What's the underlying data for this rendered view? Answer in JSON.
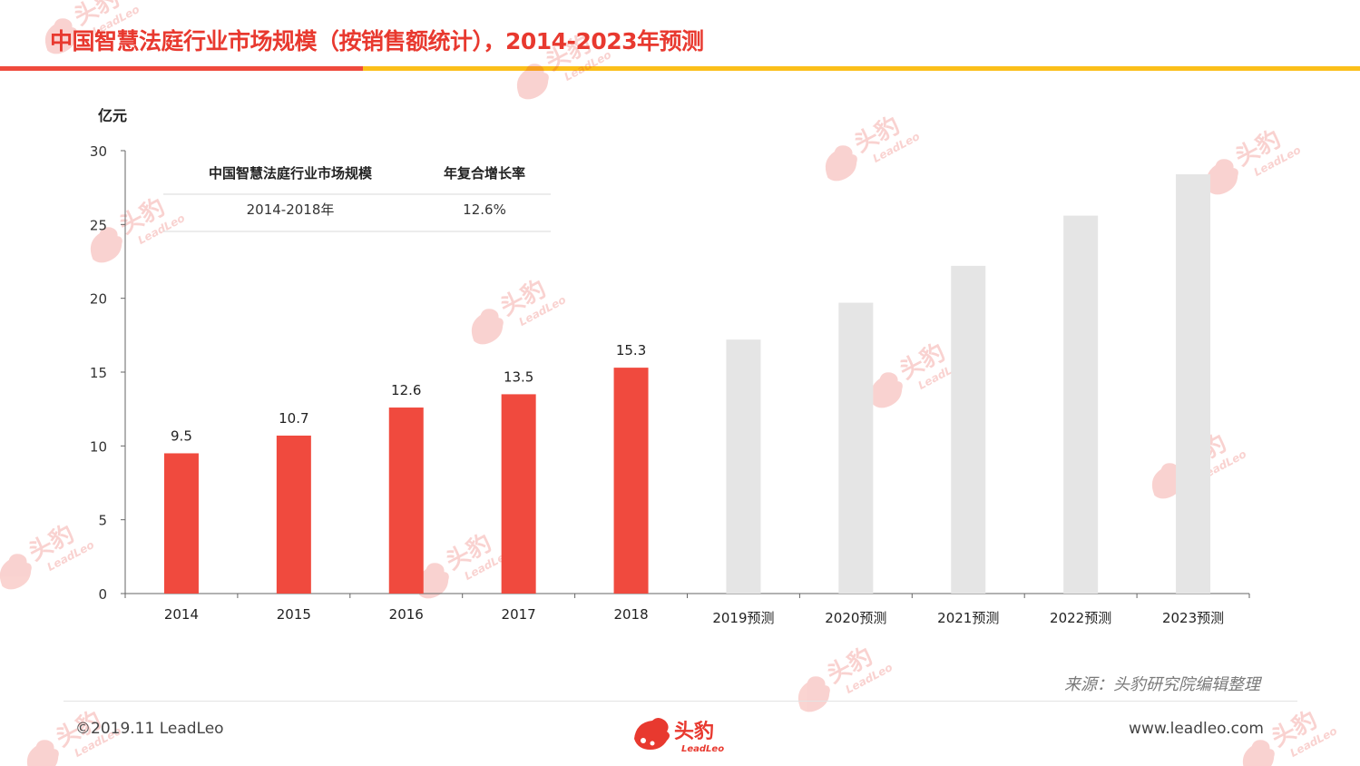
{
  "header": {
    "title": "中国智慧法庭行业市场规模（按销售额统计），2014-2023年预测"
  },
  "colors": {
    "actual_bar": "#f04a3e",
    "forecast_bar": "#e5e5e5",
    "title": "#e8392f",
    "accent_yellow": "#fbbf1a"
  },
  "chart_data": {
    "type": "bar",
    "ylabel": "亿元",
    "ylim": [
      0,
      30
    ],
    "yticks": [
      0,
      5,
      10,
      15,
      20,
      25,
      30
    ],
    "categories": [
      "2014",
      "2015",
      "2016",
      "2017",
      "2018",
      "2019预测",
      "2020预测",
      "2021预测",
      "2022预测",
      "2023预测"
    ],
    "values": [
      9.5,
      10.7,
      12.6,
      13.5,
      15.3,
      17.2,
      19.7,
      22.2,
      25.6,
      28.4
    ],
    "forecast": [
      false,
      false,
      false,
      false,
      false,
      true,
      true,
      true,
      true,
      true
    ],
    "data_labels": [
      "9.5",
      "10.7",
      "12.6",
      "13.5",
      "15.3",
      "",
      "",
      "",
      "",
      ""
    ],
    "grid": false
  },
  "cagr_table": {
    "headers": [
      "中国智慧法庭行业市场规模",
      "年复合增长率"
    ],
    "rows": [
      [
        "2014-2018年",
        "12.6%"
      ]
    ]
  },
  "footer": {
    "copyright": "©2019.11 LeadLeo",
    "website": "www.leadleo.com",
    "source": "来源：头豹研究院编辑整理"
  },
  "logo": {
    "cn": "头豹",
    "en": "LeadLeo"
  }
}
